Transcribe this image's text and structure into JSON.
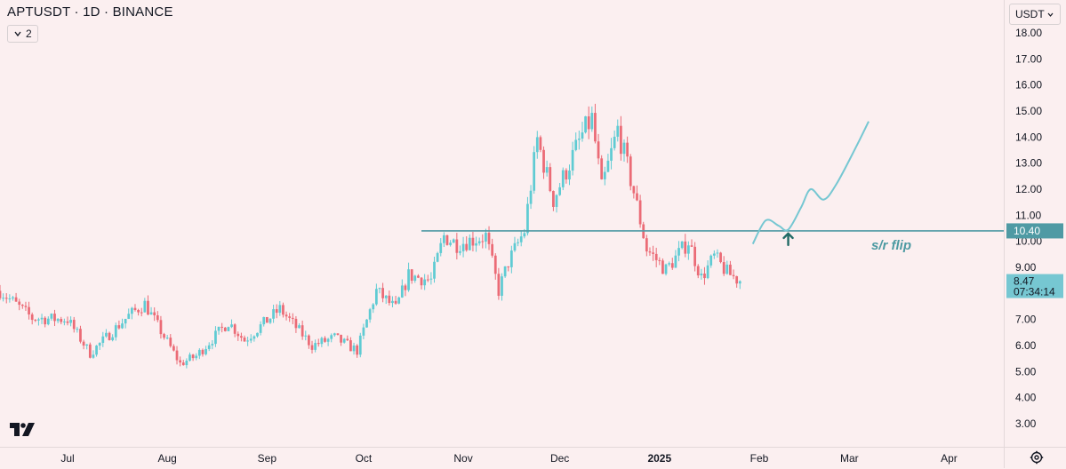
{
  "header": {
    "symbol_line": "APTUSDT · 1D · BINANCE",
    "indicator_count": "2",
    "currency": "USDT"
  },
  "icons": {
    "collapse": "chevron-down-icon",
    "currency_dropdown": "chevron-down-icon",
    "logo": "tradingview-logo",
    "settings": "gear-icon"
  },
  "colors": {
    "background": "#fbeff0",
    "up": "#5fcbd3",
    "down": "#eb6b76",
    "level_line": "#4f9aa4",
    "price_label": "#76c7d2",
    "arrow": "#226b66",
    "annotation_text": "#4d9aa2"
  },
  "annotations": {
    "level_label": "s/r flip",
    "level_value": "10.40"
  },
  "price_label": {
    "price": "8.47",
    "countdown": "07:34:14"
  },
  "chart_data": {
    "type": "candlestick",
    "symbol": "APTUSDT",
    "interval": "1D",
    "exchange": "BINANCE",
    "y_ticks": [
      "18.00",
      "17.00",
      "16.00",
      "15.00",
      "14.00",
      "13.00",
      "12.00",
      "11.00",
      "10.00",
      "9.00",
      "8.00",
      "7.00",
      "6.00",
      "5.00",
      "4.00",
      "3.00"
    ],
    "ylim": [
      2.6,
      18.5
    ],
    "x_ticks": [
      "Jul",
      "Aug",
      "Sep",
      "Oct",
      "Nov",
      "Dec",
      "2025",
      "Feb",
      "Mar",
      "Apr"
    ],
    "x_range": [
      "2024-06-10",
      "2025-04-18"
    ],
    "candles_start": "2024-06-10",
    "candles_end": "2025-01-26",
    "anchors": [
      [
        "2024-06-10",
        8.1
      ],
      [
        "2024-06-20",
        7.05
      ],
      [
        "2024-07-01",
        7.0
      ],
      [
        "2024-07-08",
        5.7
      ],
      [
        "2024-07-20",
        7.15
      ],
      [
        "2024-07-25",
        7.6
      ],
      [
        "2024-08-05",
        5.3
      ],
      [
        "2024-08-10",
        5.6
      ],
      [
        "2024-08-20",
        6.9
      ],
      [
        "2024-08-25",
        6.2
      ],
      [
        "2024-09-05",
        7.4
      ],
      [
        "2024-09-15",
        6.0
      ],
      [
        "2024-09-22",
        6.3
      ],
      [
        "2024-09-29",
        5.8
      ],
      [
        "2024-10-05",
        8.1
      ],
      [
        "2024-10-11",
        7.4
      ],
      [
        "2024-10-15",
        8.7
      ],
      [
        "2024-10-22",
        8.5
      ],
      [
        "2024-10-26",
        10.2
      ],
      [
        "2024-10-30",
        9.9
      ],
      [
        "2024-11-08",
        10.2
      ],
      [
        "2024-11-12",
        8.1
      ],
      [
        "2024-11-15",
        9.2
      ],
      [
        "2024-11-20",
        10.4
      ],
      [
        "2024-11-24",
        13.9
      ],
      [
        "2024-11-29",
        11.6
      ],
      [
        "2024-12-08",
        14.1
      ],
      [
        "2024-12-11",
        14.7
      ],
      [
        "2024-12-14",
        12.0
      ],
      [
        "2024-12-19",
        14.3
      ],
      [
        "2024-12-24",
        11.9
      ],
      [
        "2024-12-28",
        9.7
      ],
      [
        "2025-01-03",
        8.9
      ],
      [
        "2025-01-10",
        10.0
      ],
      [
        "2025-01-14",
        8.6
      ],
      [
        "2025-01-18",
        9.4
      ],
      [
        "2025-01-22",
        8.8
      ],
      [
        "2025-01-26",
        8.47
      ]
    ],
    "level_line": {
      "value": 10.4,
      "from": "2024-10-19",
      "label": "s/r flip"
    },
    "projection_path": [
      [
        "2025-01-30",
        9.9
      ],
      [
        "2025-02-03",
        10.8
      ],
      [
        "2025-02-07",
        10.6
      ],
      [
        "2025-02-10",
        10.45
      ],
      [
        "2025-02-14",
        11.3
      ],
      [
        "2025-02-17",
        12.0
      ],
      [
        "2025-02-21",
        11.6
      ],
      [
        "2025-02-25",
        12.2
      ],
      [
        "2025-03-03",
        13.6
      ],
      [
        "2025-03-07",
        14.6
      ]
    ],
    "up_arrow": {
      "date": "2025-02-10",
      "value": 10.3
    },
    "last_price": 8.47,
    "countdown": "07:34:14",
    "grid": false
  }
}
